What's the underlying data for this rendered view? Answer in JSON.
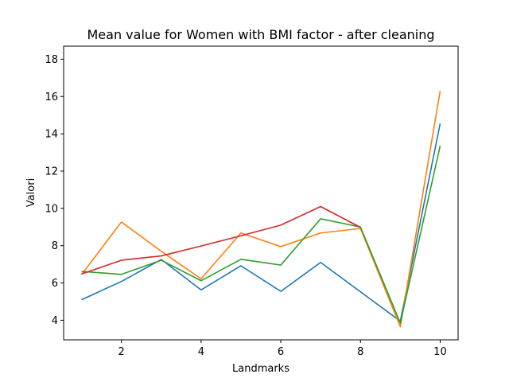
{
  "chart_data": {
    "type": "line",
    "title": "Mean value for Women with BMI factor - after cleaning",
    "xlabel": "Landmarks",
    "ylabel": "Valori",
    "xlim": [
      0.55,
      10.45
    ],
    "ylim": [
      2.95,
      18.7
    ],
    "xticks": [
      2,
      4,
      6,
      8,
      10
    ],
    "yticks": [
      4,
      6,
      8,
      10,
      12,
      14,
      16,
      18
    ],
    "grid": false,
    "series": [
      {
        "color": "#1f77b4",
        "points": [
          [
            1,
            5.1
          ],
          [
            2,
            6.08
          ],
          [
            3,
            7.26
          ],
          [
            4,
            5.63
          ],
          [
            5,
            6.92
          ],
          [
            6,
            5.55
          ],
          [
            7,
            7.1
          ],
          [
            9,
            3.95
          ],
          [
            10,
            14.55
          ]
        ]
      },
      {
        "color": "#ff7f0e",
        "points": [
          [
            1,
            6.45
          ],
          [
            2,
            9.27
          ],
          [
            3,
            7.7
          ],
          [
            4,
            6.22
          ],
          [
            5,
            8.68
          ],
          [
            6,
            7.95
          ],
          [
            7,
            8.68
          ],
          [
            8,
            8.92
          ],
          [
            9,
            3.65
          ],
          [
            10,
            16.3
          ]
        ]
      },
      {
        "color": "#2ca02c",
        "points": [
          [
            1,
            6.62
          ],
          [
            2,
            6.46
          ],
          [
            3,
            7.22
          ],
          [
            4,
            6.12
          ],
          [
            5,
            7.27
          ],
          [
            6,
            6.96
          ],
          [
            7,
            9.44
          ],
          [
            8,
            9.0
          ],
          [
            9,
            3.85
          ],
          [
            10,
            13.35
          ]
        ]
      },
      {
        "color": "#d62728",
        "points": [
          [
            1,
            6.48
          ],
          [
            2,
            7.22
          ],
          [
            3,
            7.45
          ],
          [
            4,
            7.98
          ],
          [
            5,
            8.53
          ],
          [
            6,
            9.1
          ],
          [
            7,
            10.1
          ],
          [
            8,
            8.98
          ]
        ]
      }
    ]
  }
}
